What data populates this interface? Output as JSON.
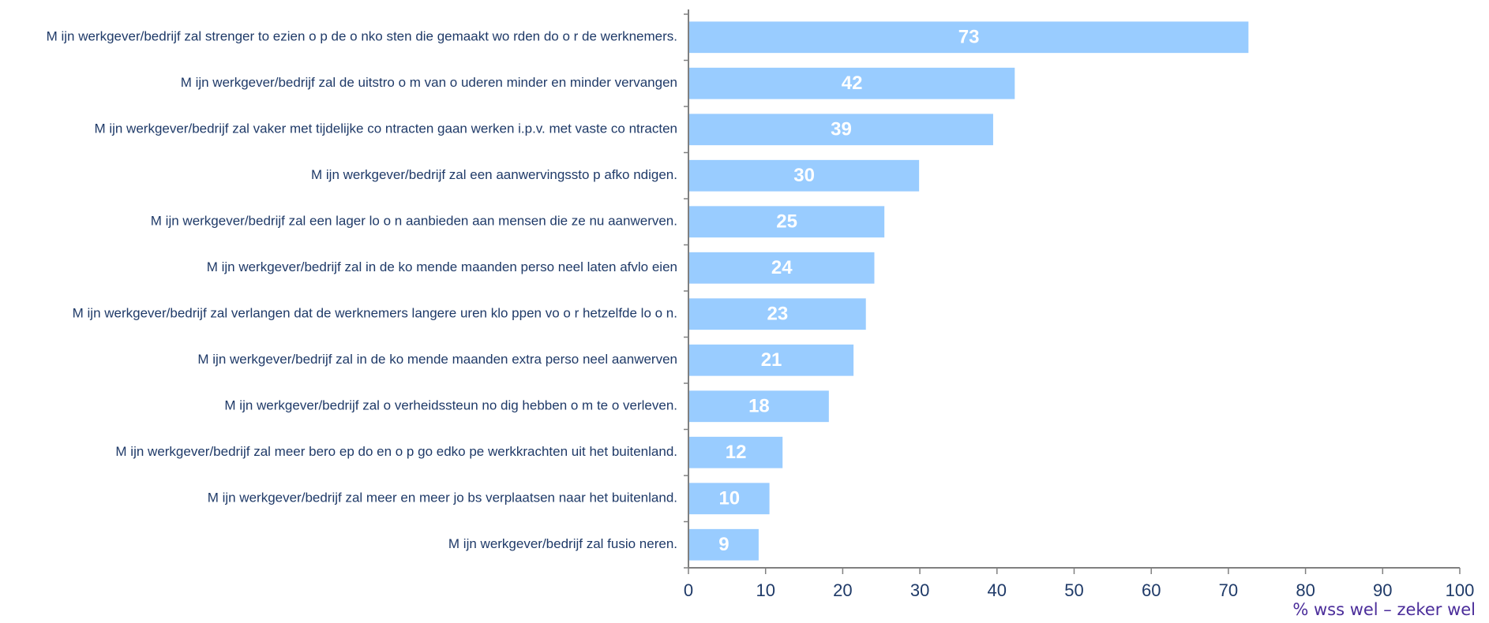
{
  "chart_data": {
    "type": "bar",
    "orientation": "horizontal",
    "categories": [
      "M ijn werkgever/bedrijf zal strenger to ezien o p de o nko sten die gemaakt wo rden do o r de werknemers.",
      "M ijn werkgever/bedrijf zal de uitstro o m van o uderen minder en minder vervangen",
      "M ijn werkgever/bedrijf zal vaker met tijdelijke co ntracten gaan werken i.p.v. met vaste co ntracten",
      "M ijn werkgever/bedrijf zal een aanwervingssto p afko ndigen.",
      "M ijn werkgever/bedrijf zal een lager lo o n aanbieden aan mensen die ze nu aanwerven.",
      "M ijn werkgever/bedrijf zal in de ko mende maanden perso neel laten afvlo eien",
      "M ijn werkgever/bedrijf zal verlangen dat de werknemers langere uren klo ppen vo o r hetzelfde lo o n.",
      "M ijn werkgever/bedrijf zal in de ko mende maanden extra perso neel aanwerven",
      "M ijn werkgever/bedrijf zal o verheidssteun no dig hebben o m te o verleven.",
      "M ijn werkgever/bedrijf zal meer bero ep do en o p go edko pe werkkrachten uit het buitenland.",
      "M ijn werkgever/bedrijf zal meer en meer jo bs verplaatsen naar het buitenland.",
      "M ijn werkgever/bedrijf zal fusio neren."
    ],
    "values": [
      72.5,
      42.2,
      39.4,
      29.8,
      25.3,
      24.0,
      22.9,
      21.3,
      18.1,
      12.1,
      10.4,
      9.0
    ],
    "value_labels": [
      "73",
      "42",
      "39",
      "30",
      "25",
      "24",
      "23",
      "21",
      "18",
      "12",
      "10",
      "9"
    ],
    "xlim": [
      0,
      100
    ],
    "xticks": [
      "0",
      "10",
      "20",
      "30",
      "40",
      "50",
      "60",
      "70",
      "80",
      "90",
      "100"
    ],
    "xlabel": "% wss wel – zeker wel",
    "grid": false,
    "colors": {
      "bar": "#99ccff",
      "category_text": "#1f3a68",
      "value_text": "#ffffff",
      "axis": "#808080",
      "axis_title": "#4b2d9a"
    }
  }
}
